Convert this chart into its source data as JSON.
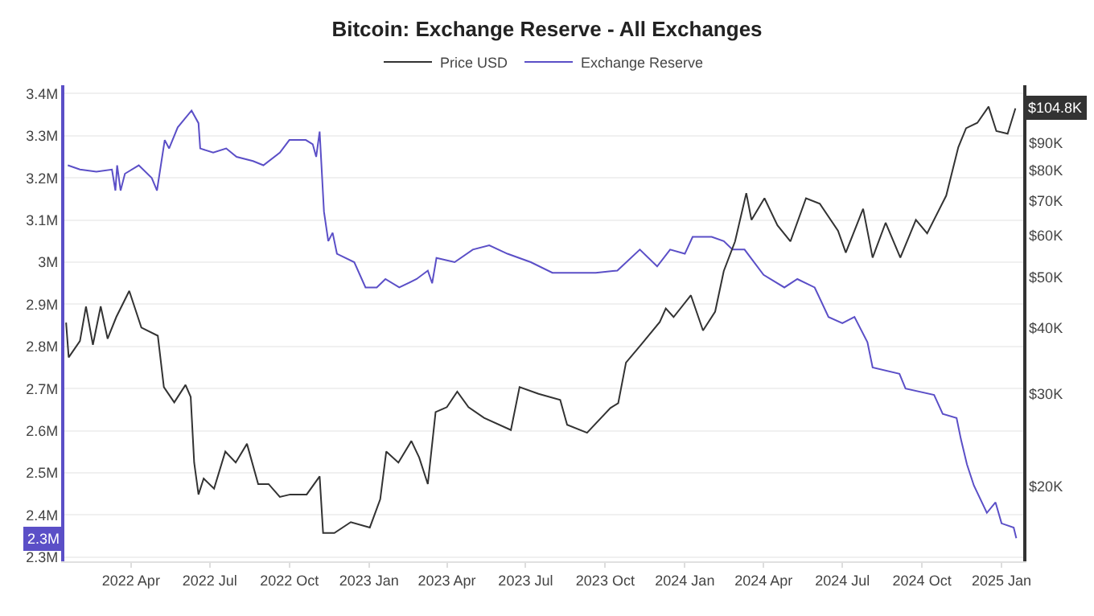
{
  "chart_data": {
    "type": "line",
    "title": "Bitcoin: Exchange Reserve - All Exchanges",
    "legend": "top",
    "grid": "y",
    "log": "y2",
    "marker": "none",
    "line_style": "solid",
    "xlim": [
      "2022-01-14",
      "2025-01-26"
    ],
    "xticks": [
      {
        "value": "2022-04-01",
        "label": "2022 Apr"
      },
      {
        "value": "2022-07-01",
        "label": "2022 Jul"
      },
      {
        "value": "2022-10-01",
        "label": "2022 Oct"
      },
      {
        "value": "2023-01-01",
        "label": "2023 Jan"
      },
      {
        "value": "2023-04-01",
        "label": "2023 Apr"
      },
      {
        "value": "2023-07-01",
        "label": "2023 Jul"
      },
      {
        "value": "2023-10-01",
        "label": "2023 Oct"
      },
      {
        "value": "2024-01-01",
        "label": "2024 Jan"
      },
      {
        "value": "2024-04-01",
        "label": "2024 Apr"
      },
      {
        "value": "2024-07-01",
        "label": "2024 Jul"
      },
      {
        "value": "2024-10-01",
        "label": "2024 Oct"
      },
      {
        "value": "2025-01-01",
        "label": "2025 Jan"
      }
    ],
    "ylim": [
      2.29,
      3.42
    ],
    "yticks": [
      {
        "value": 2.3,
        "label": "2.3M"
      },
      {
        "value": 2.4,
        "label": "2.4M"
      },
      {
        "value": 2.5,
        "label": "2.5M"
      },
      {
        "value": 2.6,
        "label": "2.6M"
      },
      {
        "value": 2.7,
        "label": "2.7M"
      },
      {
        "value": 2.8,
        "label": "2.8M"
      },
      {
        "value": 2.9,
        "label": "2.9M"
      },
      {
        "value": 3.0,
        "label": "3M"
      },
      {
        "value": 3.1,
        "label": "3.1M"
      },
      {
        "value": 3.2,
        "label": "3.2M"
      },
      {
        "value": 3.3,
        "label": "3.3M"
      },
      {
        "value": 3.4,
        "label": "3.4M"
      }
    ],
    "y2lim": [
      14400,
      116000
    ],
    "y2ticks": [
      {
        "value": 20000,
        "label": "$20K"
      },
      {
        "value": 30000,
        "label": "$30K"
      },
      {
        "value": 40000,
        "label": "$40K"
      },
      {
        "value": 50000,
        "label": "$50K"
      },
      {
        "value": 60000,
        "label": "$60K"
      },
      {
        "value": 70000,
        "label": "$70K"
      },
      {
        "value": 80000,
        "label": "$80K"
      },
      {
        "value": 90000,
        "label": "$90K"
      }
    ],
    "annotations": [
      "$104.8K",
      "2.3M"
    ],
    "series": [
      {
        "name": "Price USD",
        "color": "#333333",
        "axis": "y2",
        "x": [
          "2022-01-16",
          "2022-01-19",
          "2022-02-01",
          "2022-02-08",
          "2022-02-16",
          "2022-02-25",
          "2022-03-05",
          "2022-03-15",
          "2022-03-30",
          "2022-04-13",
          "2022-05-02",
          "2022-05-09",
          "2022-05-21",
          "2022-06-03",
          "2022-06-09",
          "2022-06-13",
          "2022-06-18",
          "2022-06-24",
          "2022-07-06",
          "2022-07-19",
          "2022-07-31",
          "2022-08-13",
          "2022-08-26",
          "2022-09-07",
          "2022-09-20",
          "2022-10-02",
          "2022-10-21",
          "2022-11-05",
          "2022-11-09",
          "2022-11-22",
          "2022-12-11",
          "2023-01-02",
          "2023-01-14",
          "2023-01-21",
          "2023-02-04",
          "2023-02-19",
          "2023-02-28",
          "2023-03-10",
          "2023-03-19",
          "2023-04-01",
          "2023-04-13",
          "2023-04-26",
          "2023-05-14",
          "2023-06-14",
          "2023-06-24",
          "2023-07-16",
          "2023-08-10",
          "2023-08-18",
          "2023-09-10",
          "2023-10-07",
          "2023-10-16",
          "2023-10-25",
          "2023-11-12",
          "2023-12-03",
          "2023-12-10",
          "2023-12-19",
          "2024-01-08",
          "2024-01-22",
          "2024-02-05",
          "2024-02-15",
          "2024-02-28",
          "2024-03-12",
          "2024-03-18",
          "2024-04-02",
          "2024-04-17",
          "2024-05-02",
          "2024-05-20",
          "2024-06-05",
          "2024-06-26",
          "2024-07-05",
          "2024-07-25",
          "2024-08-05",
          "2024-08-20",
          "2024-09-06",
          "2024-09-24",
          "2024-10-07",
          "2024-10-29",
          "2024-11-12",
          "2024-11-21",
          "2024-12-04",
          "2024-12-17",
          "2024-12-26",
          "2025-01-08",
          "2025-01-17"
        ],
        "values": [
          41000,
          35200,
          37800,
          44000,
          37200,
          44000,
          38200,
          42000,
          47100,
          40100,
          38700,
          30900,
          28900,
          31200,
          29600,
          22200,
          19300,
          20700,
          19800,
          23300,
          22200,
          24100,
          20200,
          20200,
          19100,
          19300,
          19300,
          20900,
          16300,
          16300,
          17100,
          16700,
          18900,
          23300,
          22200,
          24400,
          22700,
          20200,
          27700,
          28300,
          30300,
          28300,
          27000,
          25600,
          30900,
          30000,
          29200,
          26200,
          25300,
          28200,
          28800,
          34400,
          37300,
          41100,
          43600,
          42000,
          46200,
          39600,
          43000,
          51400,
          58500,
          72300,
          64300,
          70700,
          62800,
          58500,
          70700,
          69000,
          61300,
          55700,
          67500,
          54500,
          63500,
          54500,
          64300,
          60600,
          71500,
          88400,
          96100,
          98400,
          105600,
          94900,
          93800,
          104800
        ]
      },
      {
        "name": "Exchange Reserve",
        "color": "#5b4fc7",
        "axis": "y",
        "x": [
          "2022-01-18",
          "2022-02-01",
          "2022-02-20",
          "2022-03-10",
          "2022-03-14",
          "2022-03-16",
          "2022-03-20",
          "2022-03-25",
          "2022-04-10",
          "2022-04-25",
          "2022-05-01",
          "2022-05-10",
          "2022-05-15",
          "2022-05-25",
          "2022-06-10",
          "2022-06-18",
          "2022-06-20",
          "2022-07-05",
          "2022-07-20",
          "2022-08-01",
          "2022-08-20",
          "2022-09-01",
          "2022-09-20",
          "2022-10-01",
          "2022-10-20",
          "2022-10-28",
          "2022-11-01",
          "2022-11-05",
          "2022-11-10",
          "2022-11-15",
          "2022-11-20",
          "2022-11-25",
          "2022-12-15",
          "2022-12-28",
          "2023-01-10",
          "2023-01-20",
          "2023-02-05",
          "2023-02-25",
          "2023-03-10",
          "2023-03-15",
          "2023-03-20",
          "2023-04-10",
          "2023-05-01",
          "2023-05-20",
          "2023-06-10",
          "2023-07-07",
          "2023-08-01",
          "2023-09-20",
          "2023-10-15",
          "2023-11-10",
          "2023-11-30",
          "2023-12-15",
          "2024-01-01",
          "2024-01-10",
          "2024-02-01",
          "2024-02-15",
          "2024-02-25",
          "2024-03-10",
          "2024-04-01",
          "2024-04-25",
          "2024-05-10",
          "2024-05-30",
          "2024-06-15",
          "2024-07-01",
          "2024-07-15",
          "2024-07-30",
          "2024-08-05",
          "2024-09-05",
          "2024-09-12",
          "2024-10-15",
          "2024-10-25",
          "2024-11-10",
          "2024-11-15",
          "2024-11-22",
          "2024-11-30",
          "2024-12-15",
          "2024-12-25",
          "2025-01-01",
          "2025-01-15",
          "2025-01-18"
        ],
        "values": [
          3.23,
          3.22,
          3.215,
          3.22,
          3.17,
          3.23,
          3.17,
          3.21,
          3.23,
          3.2,
          3.17,
          3.29,
          3.27,
          3.32,
          3.36,
          3.33,
          3.27,
          3.26,
          3.27,
          3.25,
          3.24,
          3.23,
          3.26,
          3.29,
          3.29,
          3.28,
          3.25,
          3.31,
          3.12,
          3.05,
          3.07,
          3.02,
          3.0,
          2.94,
          2.94,
          2.96,
          2.94,
          2.96,
          2.98,
          2.95,
          3.01,
          3.0,
          3.03,
          3.04,
          3.02,
          3.0,
          2.975,
          2.975,
          2.98,
          3.03,
          2.99,
          3.03,
          3.02,
          3.06,
          3.06,
          3.05,
          3.03,
          3.03,
          2.97,
          2.94,
          2.96,
          2.94,
          2.87,
          2.855,
          2.87,
          2.81,
          2.75,
          2.735,
          2.7,
          2.685,
          2.64,
          2.63,
          2.58,
          2.52,
          2.47,
          2.405,
          2.43,
          2.38,
          2.37,
          2.345
        ]
      }
    ]
  }
}
